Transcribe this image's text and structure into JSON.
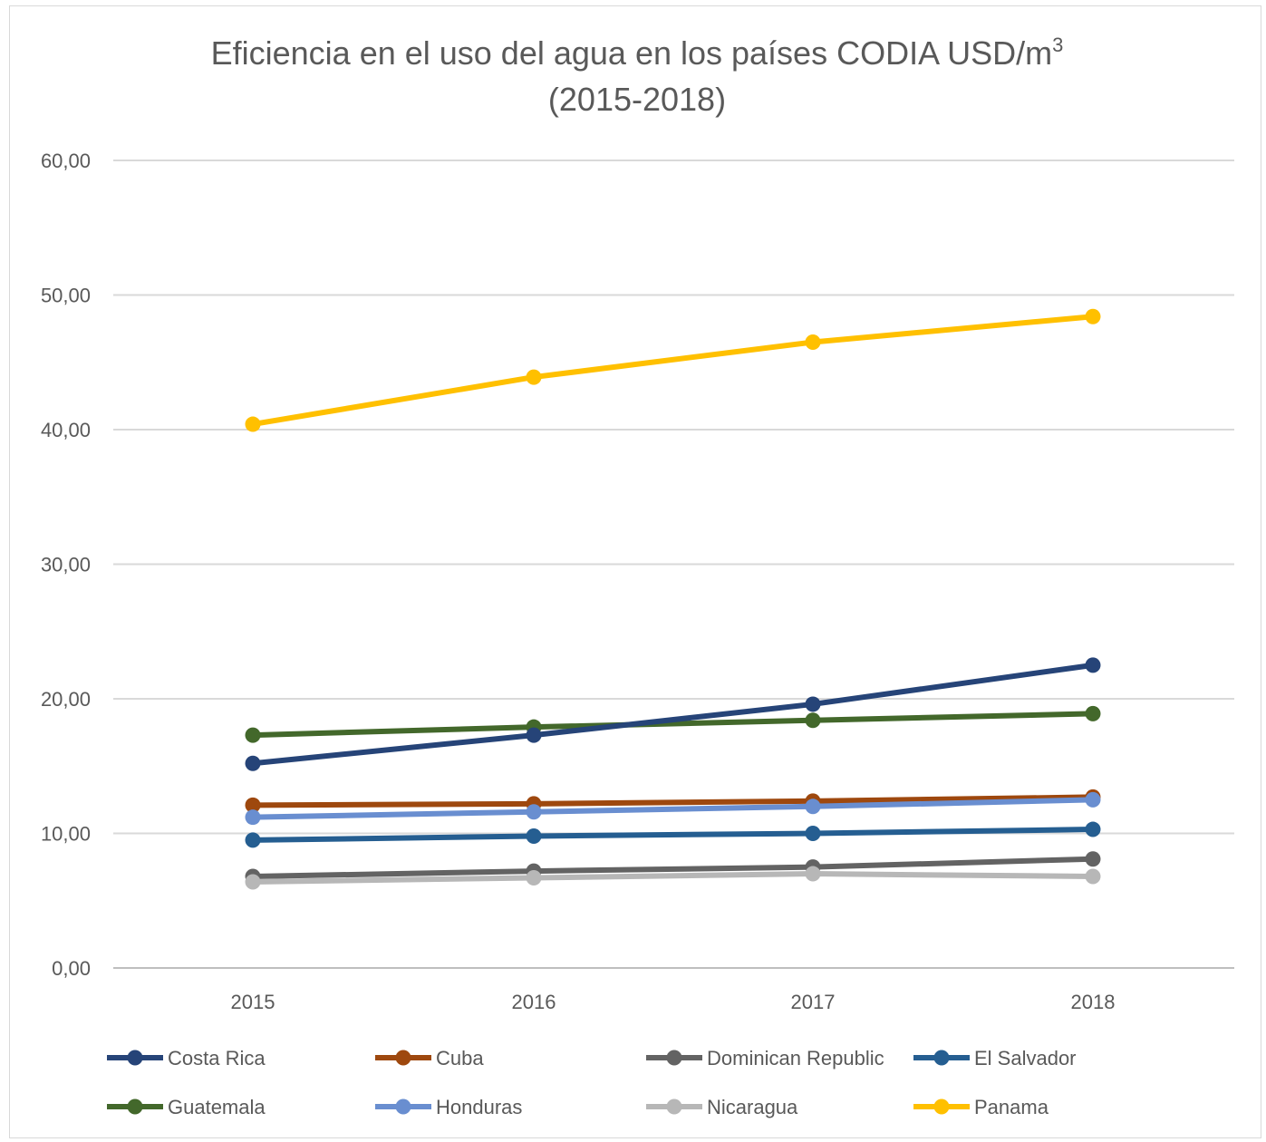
{
  "chart_data": {
    "type": "line",
    "title": "Eficiencia en el uso del agua en los países CODIA USD/m",
    "title_superscript": "3",
    "subtitle": "(2015-2018)",
    "xlabel": "",
    "ylabel": "",
    "categories": [
      "2015",
      "2016",
      "2017",
      "2018"
    ],
    "ylim": [
      0,
      60
    ],
    "yticks": [
      "0,00",
      "10,00",
      "20,00",
      "30,00",
      "40,00",
      "50,00",
      "60,00"
    ],
    "ytick_values": [
      0,
      10,
      20,
      30,
      40,
      50,
      60
    ],
    "grid": true,
    "legend_position": "bottom",
    "series": [
      {
        "name": "Costa Rica",
        "color": "#264478",
        "values": [
          15.2,
          17.3,
          19.6,
          22.5
        ]
      },
      {
        "name": "Cuba",
        "color": "#9E480E",
        "values": [
          12.1,
          12.2,
          12.4,
          12.7
        ]
      },
      {
        "name": "Dominican Republic",
        "color": "#636363",
        "values": [
          6.8,
          7.2,
          7.5,
          8.1
        ]
      },
      {
        "name": "El Salvador",
        "color": "#255E91",
        "values": [
          9.5,
          9.8,
          10.0,
          10.3
        ]
      },
      {
        "name": "Guatemala",
        "color": "#43682B",
        "values": [
          17.3,
          17.9,
          18.4,
          18.9
        ]
      },
      {
        "name": "Honduras",
        "color": "#698ED0",
        "values": [
          11.2,
          11.6,
          12.0,
          12.5
        ]
      },
      {
        "name": "Nicaragua",
        "color": "#B7B7B7",
        "values": [
          6.4,
          6.7,
          7.0,
          6.8
        ]
      },
      {
        "name": "Panama",
        "color": "#FFC000",
        "values": [
          40.4,
          43.9,
          46.5,
          48.4
        ]
      }
    ]
  }
}
